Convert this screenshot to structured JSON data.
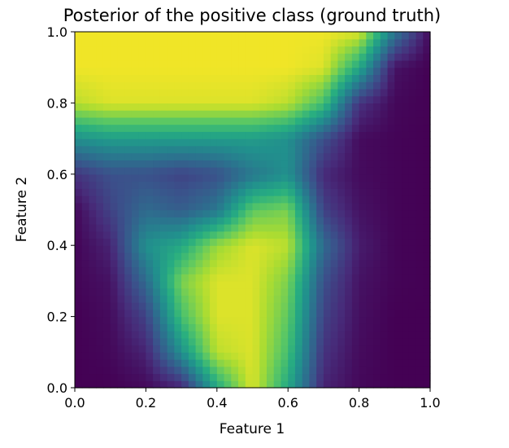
{
  "chart_data": {
    "type": "heatmap",
    "title": "Posterior of the positive class (ground truth)",
    "xlabel": "Feature 1",
    "ylabel": "Feature 2",
    "xlim": [
      0.0,
      1.0
    ],
    "ylim": [
      0.0,
      1.0
    ],
    "xticks": [
      "0.0",
      "0.2",
      "0.4",
      "0.6",
      "0.8",
      "1.0"
    ],
    "yticks": [
      "0.0",
      "0.2",
      "0.4",
      "0.6",
      "0.8",
      "1.0"
    ],
    "grid": false,
    "colormap": "viridis",
    "value_range": [
      0.0,
      1.0
    ],
    "resolution": 50,
    "x": [
      0.0,
      0.1,
      0.2,
      0.3,
      0.4,
      0.5,
      0.6,
      0.7,
      0.8,
      0.9,
      1.0
    ],
    "y": [
      0.0,
      0.1,
      0.2,
      0.3,
      0.4,
      0.5,
      0.6,
      0.7,
      0.8,
      0.9,
      1.0
    ],
    "values": [
      [
        0.0,
        0.0,
        0.02,
        0.1,
        0.6,
        0.95,
        0.6,
        0.1,
        0.02,
        0.0,
        0.0
      ],
      [
        0.0,
        0.02,
        0.1,
        0.5,
        0.9,
        0.95,
        0.7,
        0.15,
        0.03,
        0.0,
        0.0
      ],
      [
        0.0,
        0.03,
        0.2,
        0.7,
        0.95,
        0.95,
        0.75,
        0.2,
        0.04,
        0.0,
        0.0
      ],
      [
        0.01,
        0.05,
        0.35,
        0.8,
        0.95,
        0.95,
        0.8,
        0.25,
        0.05,
        0.01,
        0.0
      ],
      [
        0.01,
        0.1,
        0.5,
        0.6,
        0.85,
        0.95,
        0.9,
        0.35,
        0.08,
        0.01,
        0.0
      ],
      [
        0.02,
        0.2,
        0.35,
        0.3,
        0.4,
        0.75,
        0.8,
        0.2,
        0.05,
        0.01,
        0.0
      ],
      [
        0.15,
        0.25,
        0.25,
        0.2,
        0.25,
        0.4,
        0.5,
        0.12,
        0.03,
        0.01,
        0.0
      ],
      [
        0.5,
        0.55,
        0.55,
        0.55,
        0.55,
        0.55,
        0.5,
        0.25,
        0.03,
        0.01,
        0.0
      ],
      [
        0.9,
        0.95,
        0.95,
        0.95,
        0.95,
        0.95,
        0.9,
        0.7,
        0.15,
        0.02,
        0.0
      ],
      [
        0.98,
        0.98,
        0.98,
        0.98,
        0.98,
        0.98,
        0.98,
        0.95,
        0.6,
        0.05,
        0.0
      ],
      [
        0.98,
        0.98,
        0.98,
        0.98,
        0.98,
        0.98,
        0.98,
        0.98,
        0.95,
        0.4,
        0.02
      ]
    ]
  }
}
